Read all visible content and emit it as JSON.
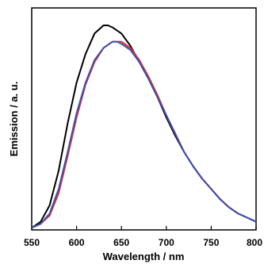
{
  "chart_data": {
    "type": "line",
    "xlabel": "Wavelength / nm",
    "ylabel": "Emission / a. u.",
    "xlim": [
      550,
      800
    ],
    "ylim": [
      0,
      1.0
    ],
    "x_ticks": [
      "550",
      "600",
      "650",
      "700",
      "750",
      "800"
    ],
    "grid": false,
    "legend": "none",
    "series": [
      {
        "color": "#000000",
        "x": [
          550,
          560,
          570,
          580,
          590,
          600,
          610,
          620,
          630,
          635,
          640,
          650,
          660,
          670,
          680,
          690,
          700,
          710,
          720,
          730,
          740,
          750,
          760,
          770,
          780,
          790,
          800
        ],
        "y": [
          0.01,
          0.04,
          0.12,
          0.29,
          0.52,
          0.72,
          0.86,
          0.96,
          1.0,
          1.0,
          0.99,
          0.96,
          0.9,
          0.82,
          0.74,
          0.65,
          0.55,
          0.46,
          0.38,
          0.31,
          0.25,
          0.2,
          0.15,
          0.11,
          0.08,
          0.06,
          0.04
        ]
      },
      {
        "color": "#e03030",
        "x": [
          550,
          560,
          570,
          580,
          590,
          600,
          610,
          620,
          630,
          640,
          645,
          650,
          660,
          670,
          680,
          690,
          700,
          710,
          720,
          730,
          740,
          750,
          760,
          770,
          780,
          790,
          800
        ],
        "y": [
          0.01,
          0.03,
          0.07,
          0.18,
          0.36,
          0.55,
          0.71,
          0.82,
          0.89,
          0.92,
          0.92,
          0.92,
          0.89,
          0.83,
          0.75,
          0.66,
          0.56,
          0.47,
          0.38,
          0.31,
          0.25,
          0.2,
          0.15,
          0.11,
          0.08,
          0.06,
          0.04
        ]
      },
      {
        "color": "#3a4fb0",
        "x": [
          550,
          560,
          570,
          580,
          590,
          600,
          610,
          620,
          630,
          640,
          645,
          650,
          660,
          670,
          680,
          690,
          700,
          710,
          720,
          730,
          740,
          750,
          760,
          770,
          780,
          790,
          800
        ],
        "y": [
          0.01,
          0.03,
          0.08,
          0.2,
          0.38,
          0.57,
          0.72,
          0.83,
          0.89,
          0.92,
          0.92,
          0.91,
          0.88,
          0.82,
          0.74,
          0.65,
          0.56,
          0.47,
          0.38,
          0.31,
          0.25,
          0.2,
          0.15,
          0.11,
          0.08,
          0.06,
          0.04
        ]
      }
    ]
  }
}
